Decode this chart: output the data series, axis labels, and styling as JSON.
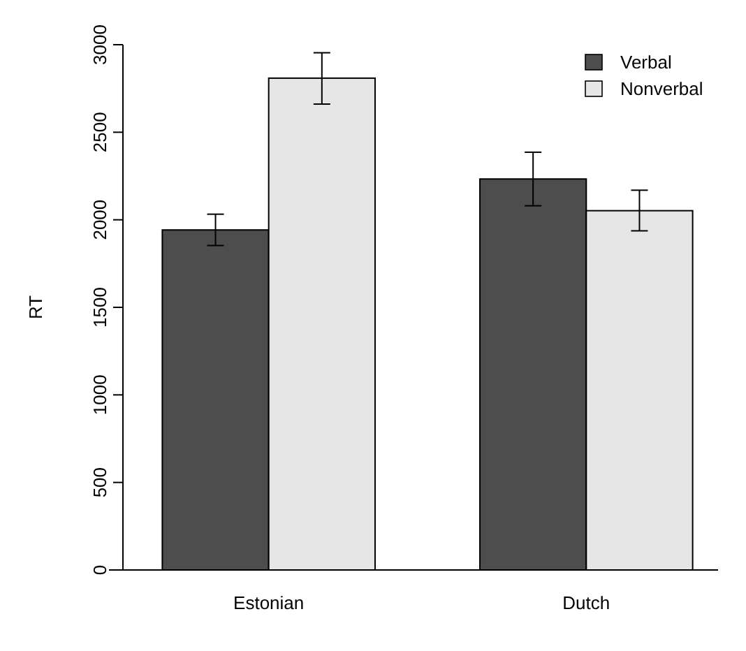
{
  "chart_data": {
    "type": "bar",
    "ylabel": "RT",
    "categories": [
      "Estonian",
      "Dutch"
    ],
    "series": [
      {
        "name": "Verbal",
        "color": "#4d4d4d",
        "values": [
          1942,
          2233
        ],
        "errors": [
          [
            1853,
            2032
          ],
          [
            2080,
            2386
          ]
        ]
      },
      {
        "name": "Nonverbal",
        "color": "#e6e6e6",
        "values": [
          2809,
          2052
        ],
        "errors": [
          [
            2661,
            2954
          ],
          [
            1937,
            2169
          ]
        ]
      }
    ],
    "ylim": [
      0,
      3000
    ],
    "yticks": [
      0,
      500,
      1000,
      1500,
      2000,
      2500,
      3000
    ],
    "legend": "top right",
    "grid": false
  }
}
